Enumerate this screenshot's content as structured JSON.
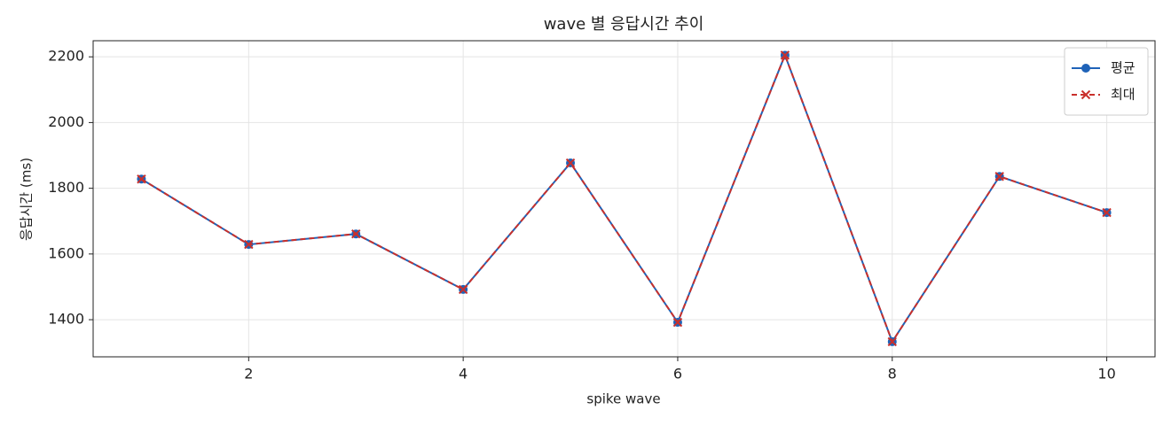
{
  "chart_data": {
    "type": "line",
    "title": "wave 별 응답시간 추이",
    "x_label": "spike wave",
    "y_label": "응답시간 (ms)",
    "x": [
      1,
      2,
      3,
      4,
      5,
      6,
      7,
      8,
      9,
      10
    ],
    "series": [
      {
        "name": "평균",
        "color": "#1f63b8",
        "marker": "o",
        "dashed": false,
        "values": [
          1828,
          1629,
          1661,
          1492,
          1877,
          1392,
          2205,
          1333,
          1836,
          1726
        ]
      },
      {
        "name": "최대",
        "color": "#c9302c",
        "marker": "x",
        "dashed": true,
        "values": [
          1828,
          1629,
          1661,
          1492,
          1877,
          1392,
          2205,
          1333,
          1836,
          1726
        ]
      }
    ],
    "xlim": [
      0.55,
      10.45
    ],
    "xticks": [
      2,
      4,
      6,
      8,
      10
    ],
    "ylim": [
      1287,
      2249
    ],
    "yticks": [
      1400,
      1600,
      1800,
      2000,
      2200
    ],
    "grid": true,
    "legend": "upper right"
  }
}
